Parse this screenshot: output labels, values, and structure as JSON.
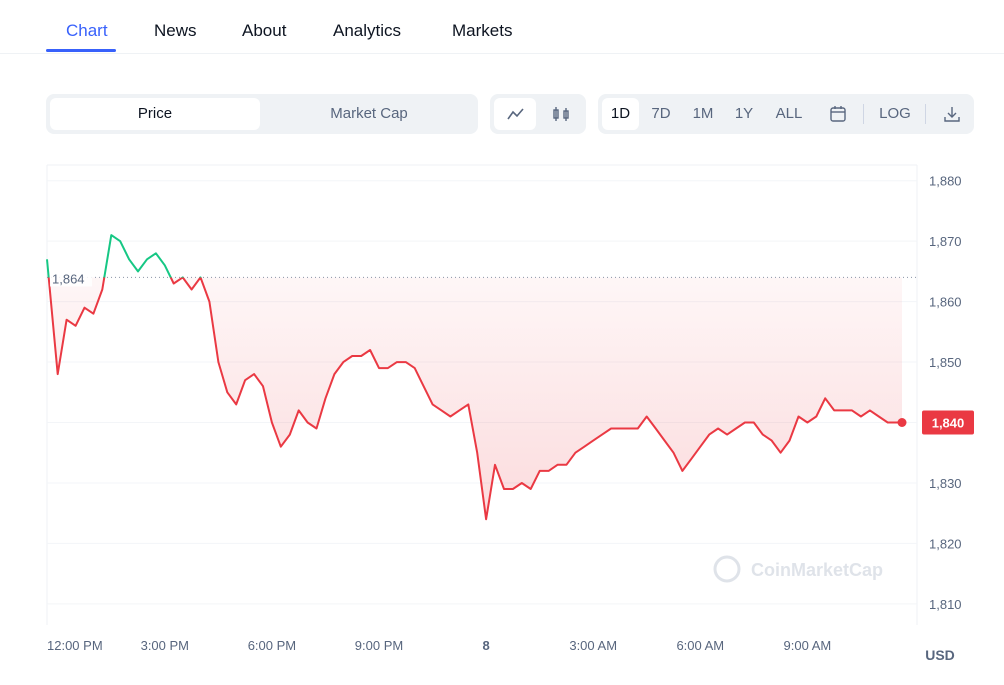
{
  "tabs": [
    "Chart",
    "News",
    "About",
    "Analytics",
    "Markets"
  ],
  "toolbar": {
    "metric_options": [
      "Price",
      "Market Cap"
    ],
    "ranges": [
      "1D",
      "7D",
      "1M",
      "1Y",
      "ALL"
    ],
    "log_button": "LOG"
  },
  "chart_data": {
    "type": "line",
    "x": [
      11.7,
      12,
      12.25,
      12.5,
      12.75,
      13,
      13.25,
      13.5,
      13.75,
      14,
      14.25,
      14.5,
      14.75,
      15,
      15.25,
      15.5,
      15.75,
      16,
      16.25,
      16.5,
      16.75,
      17,
      17.25,
      17.5,
      17.75,
      18,
      18.25,
      18.5,
      18.75,
      19,
      19.25,
      19.5,
      19.75,
      20,
      20.25,
      20.5,
      20.75,
      21,
      21.25,
      21.5,
      21.75,
      22,
      22.25,
      22.5,
      22.75,
      23,
      23.25,
      23.5,
      23.75,
      24,
      24.25,
      24.5,
      24.75,
      25,
      25.25,
      25.5,
      25.75,
      26,
      26.25,
      26.5,
      26.75,
      27,
      27.25,
      27.5,
      27.75,
      28,
      28.25,
      28.5,
      28.75,
      29,
      29.25,
      29.5,
      29.75,
      30,
      30.25,
      30.5,
      30.75,
      31,
      31.25,
      31.5,
      31.75,
      32,
      32.25,
      32.5,
      32.75,
      33,
      33.25,
      33.5,
      33.75,
      34,
      34.25,
      34.5,
      34.75,
      35,
      35.25,
      35.5,
      35.65
    ],
    "values": [
      1867,
      1848,
      1857,
      1856,
      1859,
      1858,
      1862,
      1871,
      1870,
      1867,
      1865,
      1867,
      1868,
      1866,
      1863,
      1864,
      1862,
      1864,
      1860,
      1850,
      1845,
      1843,
      1847,
      1848,
      1846,
      1840,
      1836,
      1838,
      1842,
      1840,
      1839,
      1844,
      1848,
      1850,
      1851,
      1851,
      1852,
      1849,
      1849,
      1850,
      1850,
      1849,
      1846,
      1843,
      1842,
      1841,
      1842,
      1843,
      1835,
      1824,
      1833,
      1829,
      1829,
      1830,
      1829,
      1832,
      1832,
      1833,
      1833,
      1835,
      1836,
      1837,
      1838,
      1839,
      1839,
      1839,
      1839,
      1841,
      1839,
      1837,
      1835,
      1832,
      1834,
      1836,
      1838,
      1839,
      1838,
      1839,
      1840,
      1840,
      1838,
      1837,
      1835,
      1837,
      1841,
      1840,
      1841,
      1844,
      1842,
      1842,
      1842,
      1841,
      1842,
      1841,
      1840,
      1840,
      1840
    ],
    "up_color": "#16c784",
    "down_color": "#ea3943",
    "reference_line": {
      "value": 1864,
      "label": "1,864"
    },
    "current_price": {
      "value": 1840,
      "label": "1,840"
    },
    "xlim": [
      11.7,
      35.65
    ],
    "xticks": [
      {
        "value": 12,
        "label": "12:00 PM"
      },
      {
        "value": 15,
        "label": "3:00 PM"
      },
      {
        "value": 18,
        "label": "6:00 PM"
      },
      {
        "value": 21,
        "label": "9:00 PM"
      },
      {
        "value": 24,
        "label": "8"
      },
      {
        "value": 27,
        "label": "3:00 AM"
      },
      {
        "value": 30,
        "label": "6:00 AM"
      },
      {
        "value": 33,
        "label": "9:00 AM"
      }
    ],
    "ylim": [
      1806.5,
      1882.6
    ],
    "yticks": [
      {
        "value": 1810,
        "label": "1,810"
      },
      {
        "value": 1820,
        "label": "1,820"
      },
      {
        "value": 1830,
        "label": "1,830"
      },
      {
        "value": 1840,
        "label": "1,840"
      },
      {
        "value": 1850,
        "label": "1,850"
      },
      {
        "value": 1860,
        "label": "1,860"
      },
      {
        "value": 1870,
        "label": "1,870"
      },
      {
        "value": 1880,
        "label": "1,880"
      }
    ],
    "grid": true,
    "currency": "USD",
    "watermark": "CoinMarketCap"
  }
}
